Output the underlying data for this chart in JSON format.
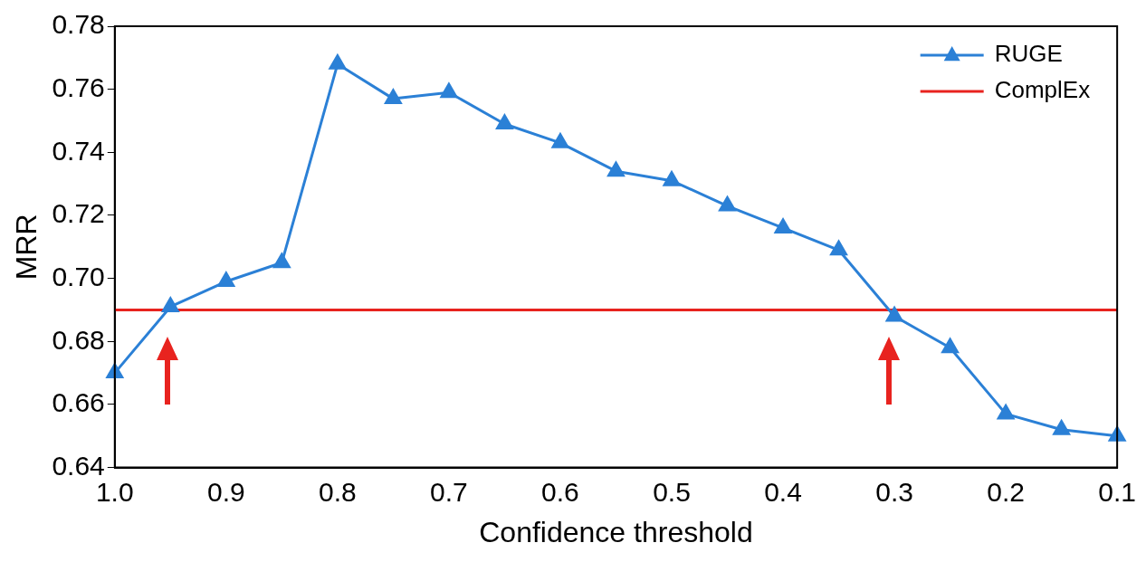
{
  "chart_data": {
    "type": "line",
    "xlabel": "Confidence threshold",
    "ylabel": "MRR",
    "xlim": [
      1.0,
      0.1
    ],
    "xticks": [
      {
        "value": 1.0,
        "label": "1.0"
      },
      {
        "value": 0.9,
        "label": "0.9"
      },
      {
        "value": 0.8,
        "label": "0.8"
      },
      {
        "value": 0.7,
        "label": "0.7"
      },
      {
        "value": 0.6,
        "label": "0.6"
      },
      {
        "value": 0.5,
        "label": "0.5"
      },
      {
        "value": 0.4,
        "label": "0.4"
      },
      {
        "value": 0.3,
        "label": "0.3"
      },
      {
        "value": 0.2,
        "label": "0.2"
      },
      {
        "value": 0.1,
        "label": "0.1"
      }
    ],
    "ylim": [
      0.64,
      0.78
    ],
    "yticks": [
      {
        "value": 0.64,
        "label": "0.64"
      },
      {
        "value": 0.66,
        "label": "0.66"
      },
      {
        "value": 0.68,
        "label": "0.68"
      },
      {
        "value": 0.7,
        "label": "0.70"
      },
      {
        "value": 0.72,
        "label": "0.72"
      },
      {
        "value": 0.74,
        "label": "0.74"
      },
      {
        "value": 0.76,
        "label": "0.76"
      },
      {
        "value": 0.78,
        "label": "0.78"
      }
    ],
    "x": [
      1.0,
      0.95,
      0.9,
      0.85,
      0.8,
      0.75,
      0.7,
      0.65,
      0.6,
      0.55,
      0.5,
      0.45,
      0.4,
      0.35,
      0.3,
      0.25,
      0.2,
      0.15,
      0.1
    ],
    "series": [
      {
        "name": "RUGE",
        "color": "#2b80d6",
        "marker": "triangle",
        "values": [
          0.67,
          0.691,
          0.699,
          0.705,
          0.768,
          0.757,
          0.759,
          0.749,
          0.743,
          0.734,
          0.731,
          0.723,
          0.716,
          0.709,
          0.688,
          0.678,
          0.657,
          0.652,
          0.65
        ]
      },
      {
        "name": "ComplEx",
        "color": "#e8231f",
        "marker": "none",
        "x": [
          1.0,
          0.1
        ],
        "values": [
          0.69,
          0.69
        ]
      }
    ],
    "legend": "top right",
    "grid": false
  }
}
